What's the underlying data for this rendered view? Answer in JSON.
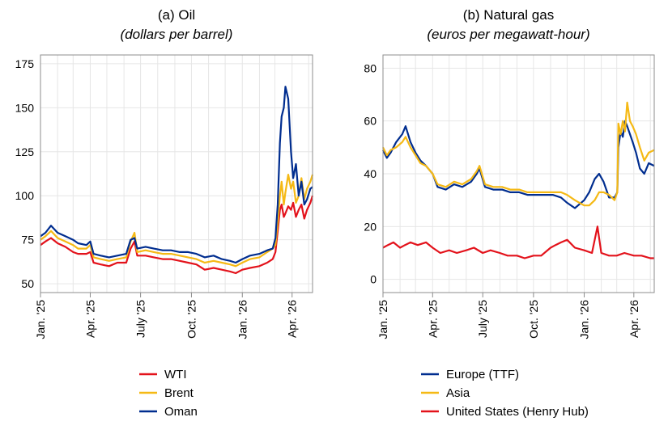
{
  "chart_data": [
    {
      "id": "oil",
      "type": "line",
      "title": "(a) Oil",
      "subtitle": "(dollars per barrel)",
      "xlabel": "",
      "ylabel": "",
      "ylim": [
        45,
        180
      ],
      "yticks": [
        50,
        75,
        100,
        125,
        150,
        175
      ],
      "xlim": [
        "2025-01-01",
        "2026-05-08"
      ],
      "xticks": [
        {
          "date": "2025-01-01",
          "label": "Jan. '25"
        },
        {
          "date": "2025-04-01",
          "label": "Apr. '25"
        },
        {
          "date": "2025-07-01",
          "label": "July '25"
        },
        {
          "date": "2025-10-01",
          "label": "Oct. '25"
        },
        {
          "date": "2026-01-01",
          "label": "Jan. '26"
        },
        {
          "date": "2026-04-01",
          "label": "Apr. '26"
        }
      ],
      "grid": true,
      "legend_position": "bottom",
      "series": [
        {
          "name": "WTI",
          "color": "#e3121b",
          "x": [
            "2025-01-01",
            "2025-01-10",
            "2025-01-20",
            "2025-02-01",
            "2025-02-15",
            "2025-03-01",
            "2025-03-10",
            "2025-03-25",
            "2025-04-01",
            "2025-04-07",
            "2025-04-20",
            "2025-05-05",
            "2025-05-20",
            "2025-06-05",
            "2025-06-13",
            "2025-06-20",
            "2025-06-25",
            "2025-07-10",
            "2025-07-25",
            "2025-08-10",
            "2025-08-25",
            "2025-09-10",
            "2025-09-25",
            "2025-10-10",
            "2025-10-25",
            "2025-11-10",
            "2025-11-25",
            "2025-12-10",
            "2025-12-20",
            "2026-01-01",
            "2026-01-15",
            "2026-02-01",
            "2026-02-15",
            "2026-02-25",
            "2026-03-02",
            "2026-03-06",
            "2026-03-10",
            "2026-03-13",
            "2026-03-17",
            "2026-03-20",
            "2026-03-25",
            "2026-03-30",
            "2026-04-03",
            "2026-04-08",
            "2026-04-13",
            "2026-04-18",
            "2026-04-23",
            "2026-04-28",
            "2026-05-04",
            "2026-05-08"
          ],
          "y": [
            72,
            74,
            76,
            73,
            71,
            68,
            67,
            67,
            68,
            62,
            61,
            60,
            62,
            62,
            70,
            74,
            66,
            66,
            65,
            64,
            64,
            63,
            62,
            61,
            58,
            59,
            58,
            57,
            56,
            58,
            59,
            60,
            62,
            64,
            68,
            80,
            92,
            95,
            88,
            90,
            94,
            92,
            96,
            88,
            92,
            95,
            87,
            92,
            96,
            100
          ]
        },
        {
          "name": "Brent",
          "color": "#f5b915",
          "x": [
            "2025-01-01",
            "2025-01-10",
            "2025-01-20",
            "2025-02-01",
            "2025-02-15",
            "2025-03-01",
            "2025-03-10",
            "2025-03-25",
            "2025-04-01",
            "2025-04-07",
            "2025-04-20",
            "2025-05-05",
            "2025-05-20",
            "2025-06-05",
            "2025-06-13",
            "2025-06-20",
            "2025-06-25",
            "2025-07-10",
            "2025-07-25",
            "2025-08-10",
            "2025-08-25",
            "2025-09-10",
            "2025-09-25",
            "2025-10-10",
            "2025-10-25",
            "2025-11-10",
            "2025-11-25",
            "2025-12-10",
            "2025-12-20",
            "2026-01-01",
            "2026-01-15",
            "2026-02-01",
            "2026-02-15",
            "2026-02-25",
            "2026-03-02",
            "2026-03-06",
            "2026-03-10",
            "2026-03-13",
            "2026-03-17",
            "2026-03-20",
            "2026-03-25",
            "2026-03-30",
            "2026-04-03",
            "2026-04-08",
            "2026-04-13",
            "2026-04-18",
            "2026-04-23",
            "2026-04-28",
            "2026-05-04",
            "2026-05-08"
          ],
          "y": [
            75,
            77,
            80,
            76,
            74,
            72,
            70,
            70,
            72,
            65,
            64,
            63,
            64,
            65,
            74,
            79,
            68,
            69,
            68,
            67,
            67,
            66,
            65,
            64,
            62,
            63,
            62,
            61,
            60,
            62,
            64,
            65,
            68,
            70,
            72,
            85,
            100,
            108,
            95,
            102,
            112,
            104,
            108,
            96,
            100,
            110,
            98,
            104,
            108,
            112
          ]
        },
        {
          "name": "Oman",
          "color": "#002d8f",
          "x": [
            "2025-01-01",
            "2025-01-10",
            "2025-01-20",
            "2025-02-01",
            "2025-02-15",
            "2025-03-01",
            "2025-03-10",
            "2025-03-25",
            "2025-04-01",
            "2025-04-07",
            "2025-04-20",
            "2025-05-05",
            "2025-05-20",
            "2025-06-05",
            "2025-06-13",
            "2025-06-20",
            "2025-06-25",
            "2025-07-10",
            "2025-07-25",
            "2025-08-10",
            "2025-08-25",
            "2025-09-10",
            "2025-09-25",
            "2025-10-10",
            "2025-10-25",
            "2025-11-10",
            "2025-11-25",
            "2025-12-10",
            "2025-12-20",
            "2026-01-01",
            "2026-01-15",
            "2026-02-01",
            "2026-02-15",
            "2026-02-25",
            "2026-03-02",
            "2026-03-06",
            "2026-03-10",
            "2026-03-13",
            "2026-03-17",
            "2026-03-20",
            "2026-03-25",
            "2026-03-30",
            "2026-04-03",
            "2026-04-08",
            "2026-04-13",
            "2026-04-18",
            "2026-04-23",
            "2026-04-28",
            "2026-05-04",
            "2026-05-08"
          ],
          "y": [
            77,
            79,
            83,
            79,
            77,
            75,
            73,
            72,
            74,
            67,
            66,
            65,
            66,
            67,
            75,
            76,
            70,
            71,
            70,
            69,
            69,
            68,
            68,
            67,
            65,
            66,
            64,
            63,
            62,
            64,
            66,
            67,
            69,
            70,
            76,
            95,
            130,
            145,
            150,
            162,
            155,
            125,
            110,
            118,
            100,
            108,
            95,
            98,
            104,
            105
          ]
        }
      ]
    },
    {
      "id": "gas",
      "type": "line",
      "title": "(b) Natural gas",
      "subtitle": "(euros per megawatt-hour)",
      "xlabel": "",
      "ylabel": "",
      "ylim": [
        -5,
        85
      ],
      "yticks": [
        0,
        20,
        40,
        60,
        80
      ],
      "xlim": [
        "2025-01-01",
        "2026-05-08"
      ],
      "xticks": [
        {
          "date": "2025-01-01",
          "label": "Jan. '25"
        },
        {
          "date": "2025-04-01",
          "label": "Apr. '25"
        },
        {
          "date": "2025-07-01",
          "label": "July '25"
        },
        {
          "date": "2025-10-01",
          "label": "Oct. '25"
        },
        {
          "date": "2026-01-01",
          "label": "Jan. '26"
        },
        {
          "date": "2026-04-01",
          "label": "Apr. '26"
        }
      ],
      "grid": true,
      "legend_position": "bottom",
      "series": [
        {
          "name": "Europe (TTF)",
          "color": "#002d8f",
          "x": [
            "2025-01-01",
            "2025-01-08",
            "2025-01-15",
            "2025-01-25",
            "2025-02-05",
            "2025-02-11",
            "2025-02-20",
            "2025-03-01",
            "2025-03-10",
            "2025-03-20",
            "2025-04-01",
            "2025-04-10",
            "2025-04-25",
            "2025-05-10",
            "2025-05-25",
            "2025-06-10",
            "2025-06-20",
            "2025-06-25",
            "2025-07-05",
            "2025-07-20",
            "2025-08-05",
            "2025-08-20",
            "2025-09-05",
            "2025-09-20",
            "2025-10-05",
            "2025-10-20",
            "2025-11-05",
            "2025-11-20",
            "2025-12-01",
            "2025-12-15",
            "2026-01-01",
            "2026-01-10",
            "2026-01-20",
            "2026-01-28",
            "2026-02-05",
            "2026-02-15",
            "2026-02-25",
            "2026-03-02",
            "2026-03-04",
            "2026-03-08",
            "2026-03-12",
            "2026-03-16",
            "2026-03-20",
            "2026-03-25",
            "2026-03-30",
            "2026-04-05",
            "2026-04-12",
            "2026-04-20",
            "2026-04-28",
            "2026-05-08"
          ],
          "y": [
            49,
            46,
            48,
            52,
            55,
            58,
            52,
            48,
            45,
            43,
            40,
            35,
            34,
            36,
            35,
            37,
            40,
            42,
            35,
            34,
            34,
            33,
            33,
            32,
            32,
            32,
            32,
            31,
            29,
            27,
            30,
            33,
            38,
            40,
            37,
            31,
            31,
            33,
            50,
            56,
            54,
            60,
            58,
            55,
            52,
            48,
            42,
            40,
            44,
            43
          ]
        },
        {
          "name": "Asia",
          "color": "#f5b915",
          "x": [
            "2025-01-01",
            "2025-01-08",
            "2025-01-15",
            "2025-01-25",
            "2025-02-05",
            "2025-02-11",
            "2025-02-20",
            "2025-03-01",
            "2025-03-10",
            "2025-03-20",
            "2025-04-01",
            "2025-04-10",
            "2025-04-25",
            "2025-05-10",
            "2025-05-25",
            "2025-06-10",
            "2025-06-20",
            "2025-06-25",
            "2025-07-05",
            "2025-07-20",
            "2025-08-05",
            "2025-08-20",
            "2025-09-05",
            "2025-09-20",
            "2025-10-05",
            "2025-10-20",
            "2025-11-05",
            "2025-11-20",
            "2025-12-01",
            "2025-12-15",
            "2026-01-01",
            "2026-01-10",
            "2026-01-20",
            "2026-01-28",
            "2026-02-05",
            "2026-02-15",
            "2026-02-25",
            "2026-03-02",
            "2026-03-04",
            "2026-03-08",
            "2026-03-12",
            "2026-03-16",
            "2026-03-20",
            "2026-03-25",
            "2026-03-30",
            "2026-04-05",
            "2026-04-12",
            "2026-04-20",
            "2026-04-28",
            "2026-05-08"
          ],
          "y": [
            50,
            47,
            49,
            50,
            52,
            54,
            50,
            47,
            44,
            43,
            40,
            36,
            35,
            37,
            36,
            38,
            41,
            43,
            36,
            35,
            35,
            34,
            34,
            33,
            33,
            33,
            33,
            33,
            32,
            30,
            28,
            28,
            30,
            33,
            33,
            32,
            30,
            33,
            59,
            55,
            60,
            56,
            67,
            60,
            58,
            55,
            50,
            45,
            48,
            49
          ]
        },
        {
          "name": "United States (Henry Hub)",
          "color": "#e3121b",
          "x": [
            "2025-01-01",
            "2025-01-10",
            "2025-01-20",
            "2025-02-01",
            "2025-02-10",
            "2025-02-20",
            "2025-03-05",
            "2025-03-20",
            "2025-04-01",
            "2025-04-15",
            "2025-05-01",
            "2025-05-15",
            "2025-06-01",
            "2025-06-15",
            "2025-07-01",
            "2025-07-15",
            "2025-08-01",
            "2025-08-15",
            "2025-09-01",
            "2025-09-15",
            "2025-10-01",
            "2025-10-15",
            "2025-11-01",
            "2025-11-10",
            "2025-11-20",
            "2025-12-01",
            "2025-12-15",
            "2026-01-01",
            "2026-01-15",
            "2026-01-20",
            "2026-01-25",
            "2026-02-01",
            "2026-02-15",
            "2026-03-01",
            "2026-03-15",
            "2026-04-01",
            "2026-04-15",
            "2026-05-01",
            "2026-05-08"
          ],
          "y": [
            12,
            13,
            14,
            12,
            13,
            14,
            13,
            14,
            12,
            10,
            11,
            10,
            11,
            12,
            10,
            11,
            10,
            9,
            9,
            8,
            9,
            9,
            12,
            13,
            14,
            15,
            12,
            11,
            10,
            15,
            20,
            10,
            9,
            9,
            10,
            9,
            9,
            8,
            8
          ]
        }
      ]
    }
  ]
}
